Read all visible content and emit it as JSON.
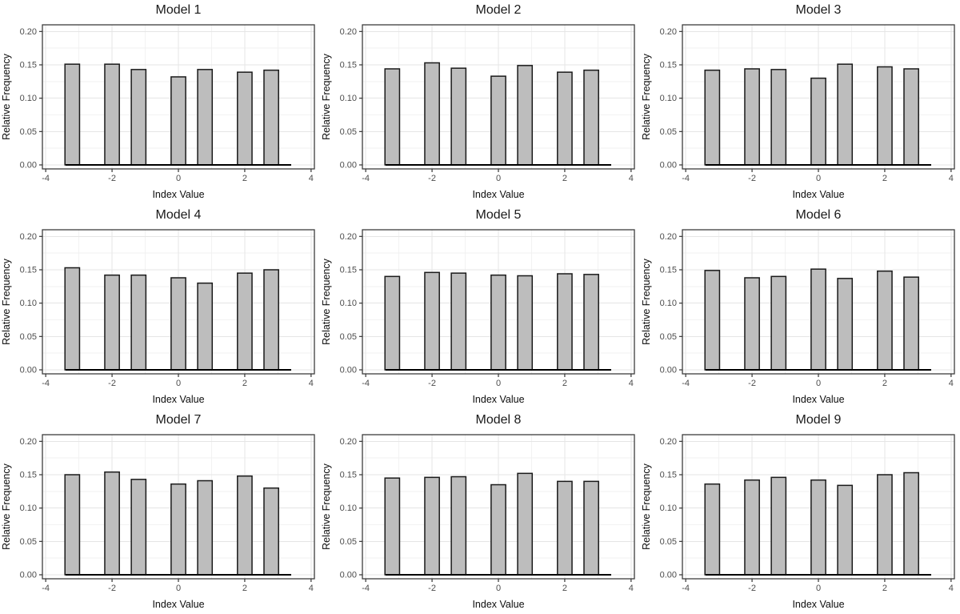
{
  "page": {
    "kind": "faceted-histogram-figure",
    "rows": 3,
    "cols": 3
  },
  "chart_common": {
    "type": "bar",
    "xlabel": "Index Value",
    "ylabel": "Relative Frequency",
    "x_ticks": [
      -4,
      -2,
      0,
      2,
      4
    ],
    "x_tick_labels": [
      "-4",
      "-2",
      "0",
      "2",
      "4"
    ],
    "y_ticks": [
      0,
      0.05,
      0.1,
      0.15,
      0.2
    ],
    "y_tick_labels": [
      "0.00",
      "0.05",
      "0.10",
      "0.15",
      "0.20"
    ],
    "x_minor_gridlines": [
      -3,
      -1,
      1,
      3
    ],
    "y_minor_gridlines": [
      0.025,
      0.075,
      0.125,
      0.175
    ],
    "xlim": [
      -4.1,
      4.1
    ],
    "ylim": [
      -0.006,
      0.21
    ],
    "bar_centers": [
      -3.2,
      -2.0,
      -1.2,
      0.0,
      0.8,
      2.0,
      2.8
    ],
    "bar_width": 0.44,
    "baseline_extent": [
      -3.4,
      3.4
    ],
    "grid": true,
    "legend": "none",
    "colors": {
      "bar_fill": "#bdbdbd",
      "bar_stroke": "#1a1a1a",
      "panel_border": "#3d3d3d",
      "grid_major": "#e5e5e5",
      "grid_minor": "#f2f2f2",
      "tick_mark": "#333333",
      "tick_label": "#4d4d4d",
      "axis_title": "#0d0d0d",
      "title": "#1a1a1a",
      "baseline": "#000000",
      "panel_bg": "#ffffff"
    }
  },
  "chart_data": [
    {
      "type": "bar",
      "title": "Model 1",
      "values": [
        0.151,
        0.151,
        0.143,
        0.132,
        0.143,
        0.139,
        0.142
      ]
    },
    {
      "type": "bar",
      "title": "Model 2",
      "values": [
        0.144,
        0.153,
        0.145,
        0.133,
        0.149,
        0.139,
        0.142
      ]
    },
    {
      "type": "bar",
      "title": "Model 3",
      "values": [
        0.142,
        0.144,
        0.143,
        0.13,
        0.151,
        0.147,
        0.144
      ]
    },
    {
      "type": "bar",
      "title": "Model 4",
      "values": [
        0.153,
        0.142,
        0.142,
        0.138,
        0.13,
        0.145,
        0.15
      ]
    },
    {
      "type": "bar",
      "title": "Model 5",
      "values": [
        0.14,
        0.146,
        0.145,
        0.142,
        0.141,
        0.144,
        0.143
      ]
    },
    {
      "type": "bar",
      "title": "Model 6",
      "values": [
        0.149,
        0.138,
        0.14,
        0.151,
        0.137,
        0.148,
        0.139
      ]
    },
    {
      "type": "bar",
      "title": "Model 7",
      "values": [
        0.15,
        0.154,
        0.143,
        0.136,
        0.141,
        0.148,
        0.13
      ]
    },
    {
      "type": "bar",
      "title": "Model 8",
      "values": [
        0.145,
        0.146,
        0.147,
        0.135,
        0.152,
        0.14,
        0.14
      ]
    },
    {
      "type": "bar",
      "title": "Model 9",
      "values": [
        0.136,
        0.142,
        0.146,
        0.142,
        0.134,
        0.15,
        0.153
      ]
    }
  ]
}
